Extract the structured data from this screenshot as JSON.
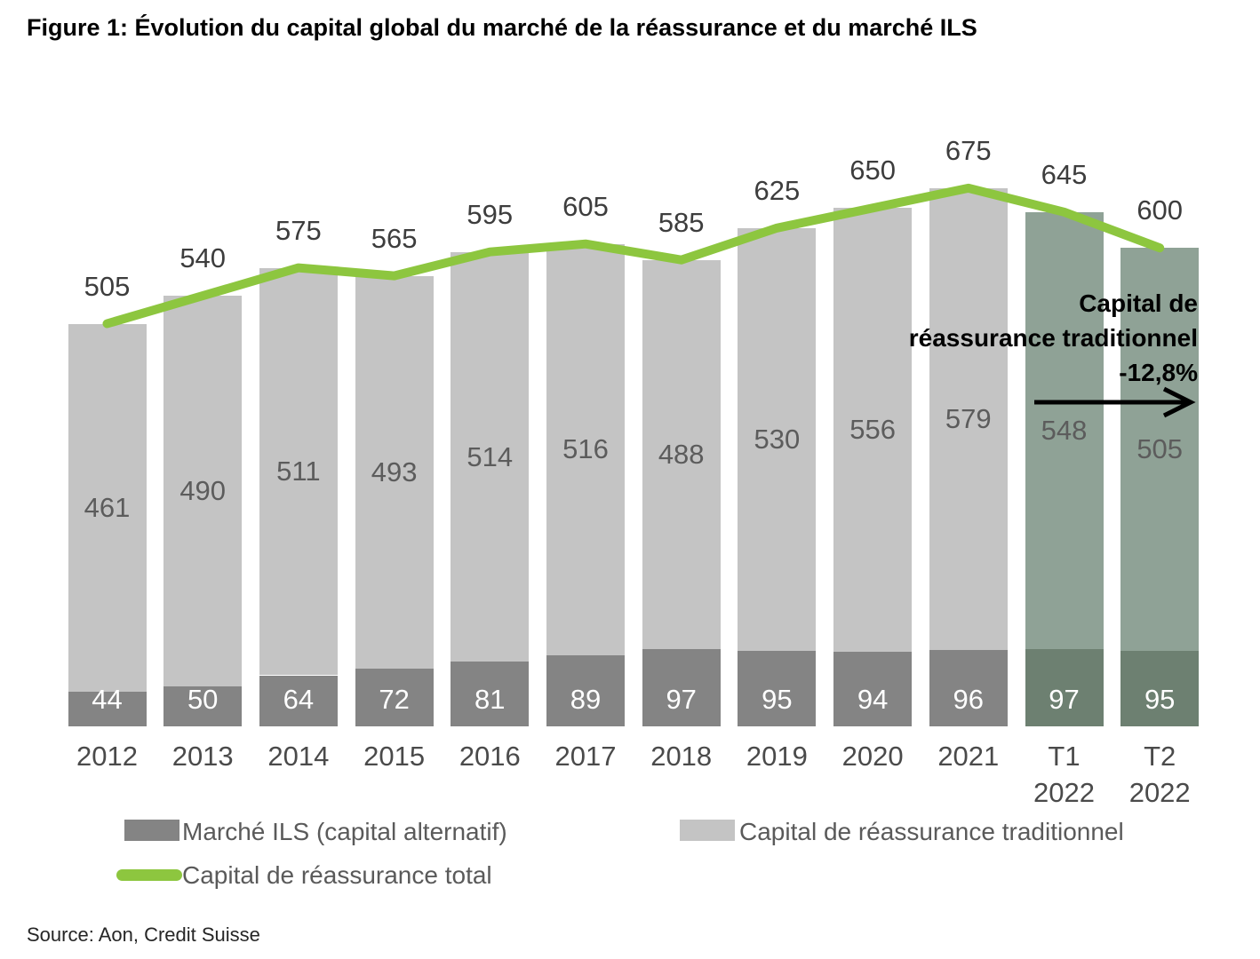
{
  "title": "Figure 1: Évolution du capital global du marché de la réassurance et du marché ILS",
  "source_note": "Source: Aon, Credit Suisse",
  "annotation": {
    "lines": [
      "Capital de",
      "réassurance traditionnel",
      "-12,8%"
    ]
  },
  "legend": {
    "ils": "Marché ILS (capital alternatif)",
    "traditional": "Capital de réassurance traditionnel",
    "total": "Capital de réassurance total"
  },
  "colors": {
    "ils_bar": "#848484",
    "traditional_bar": "#c4c4c4",
    "ils_bar_highlight": "#6d8071",
    "traditional_bar_highlight": "#8fa296",
    "total_line": "#8dc63f",
    "total_label": "#3d3d3d",
    "traditional_label": "#5c5c5c",
    "ils_label": "#ffffff",
    "axis_label": "#4a4a4a"
  },
  "chart_data": {
    "type": "bar",
    "subtype": "stacked-bars-with-total-line",
    "categories": [
      "2012",
      "2013",
      "2014",
      "2015",
      "2016",
      "2017",
      "2018",
      "2019",
      "2020",
      "2021",
      "T1 2022",
      "T2 2022"
    ],
    "series": [
      {
        "name": "Marché ILS (capital alternatif)",
        "type": "bar",
        "values": [
          44,
          50,
          64,
          72,
          81,
          89,
          97,
          95,
          94,
          96,
          97,
          95
        ]
      },
      {
        "name": "Capital de réassurance traditionnel",
        "type": "bar",
        "values": [
          461,
          490,
          511,
          493,
          514,
          516,
          488,
          530,
          556,
          579,
          548,
          505
        ]
      },
      {
        "name": "Capital de réassurance total",
        "type": "line",
        "values": [
          505,
          540,
          575,
          565,
          595,
          605,
          585,
          625,
          650,
          675,
          645,
          600
        ]
      }
    ],
    "highlighted_categories": [
      "T1 2022",
      "T2 2022"
    ],
    "highlight_start_index": 10,
    "ylim": [
      0,
      740
    ],
    "grid": false,
    "axes_shown": false,
    "legend_position": "bottom"
  }
}
